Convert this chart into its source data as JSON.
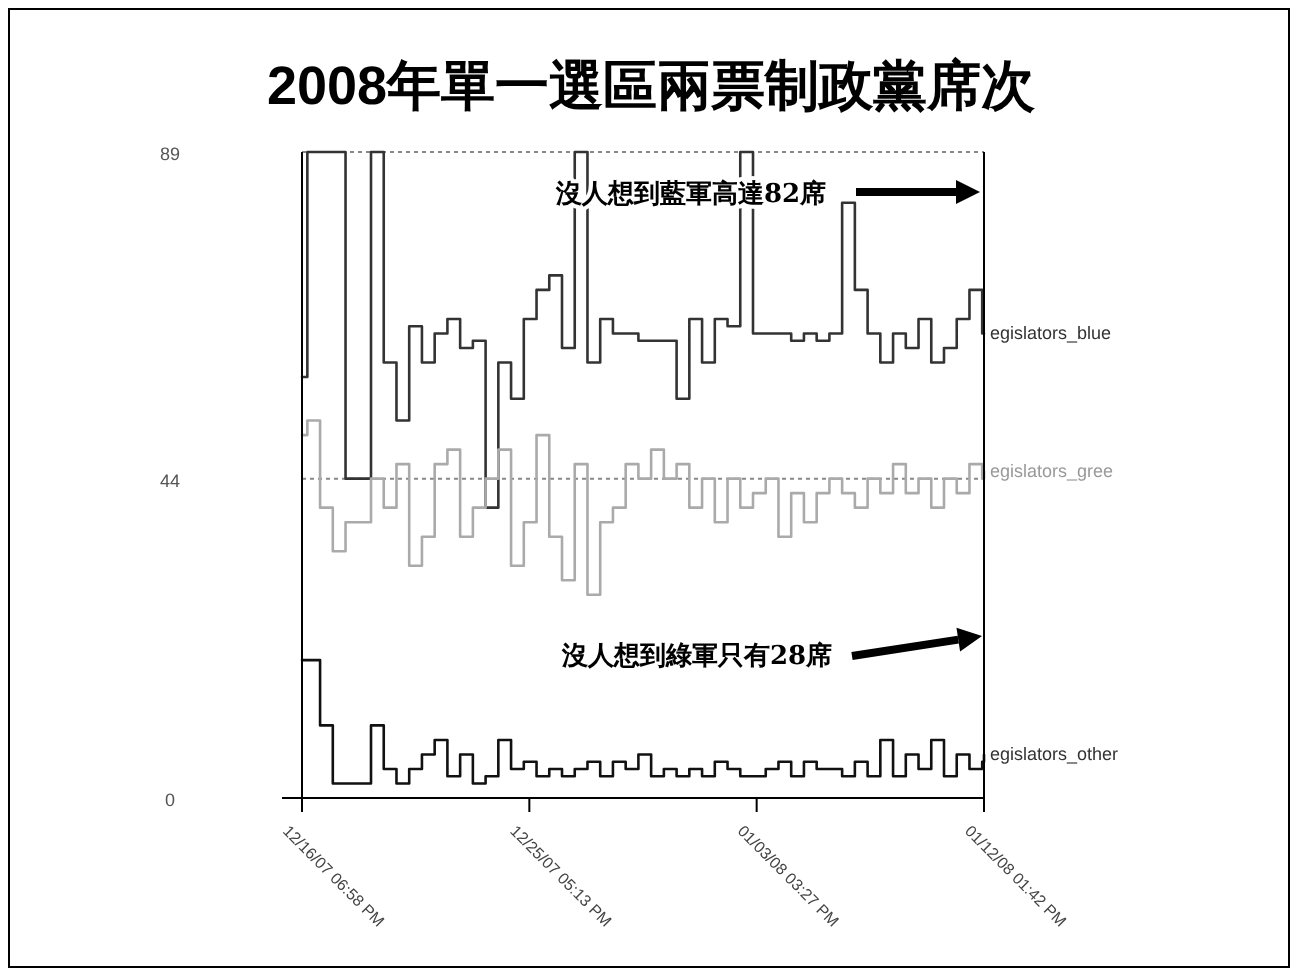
{
  "chart_data": {
    "type": "step",
    "title": "2008年單一選區兩票制政黨席次",
    "x": [
      "2007-12-16T18:58",
      "2007-12-17T00:00",
      "2007-12-17T12:00",
      "2007-12-18T00:00",
      "2007-12-18T12:00",
      "2007-12-19T00:00",
      "2007-12-19T12:00",
      "2007-12-20T00:00",
      "2007-12-20T12:00",
      "2007-12-21T00:00",
      "2007-12-21T12:00",
      "2007-12-22T00:00",
      "2007-12-22T12:00",
      "2007-12-23T00:00",
      "2007-12-23T12:00",
      "2007-12-24T00:00",
      "2007-12-24T12:00",
      "2007-12-25T00:00",
      "2007-12-25T12:00",
      "2007-12-26T00:00",
      "2007-12-26T12:00",
      "2007-12-27T00:00",
      "2007-12-27T12:00",
      "2007-12-28T00:00",
      "2007-12-28T12:00",
      "2007-12-29T00:00",
      "2007-12-29T12:00",
      "2007-12-30T00:00",
      "2007-12-30T12:00",
      "2007-12-31T00:00",
      "2007-12-31T12:00",
      "2008-01-01T00:00",
      "2008-01-01T12:00",
      "2008-01-02T00:00",
      "2008-01-02T12:00",
      "2008-01-03T00:00",
      "2008-01-03T12:00",
      "2008-01-04T00:00",
      "2008-01-04T12:00",
      "2008-01-05T00:00",
      "2008-01-05T12:00",
      "2008-01-06T00:00",
      "2008-01-06T12:00",
      "2008-01-07T00:00",
      "2008-01-07T12:00",
      "2008-01-08T00:00",
      "2008-01-08T12:00",
      "2008-01-09T00:00",
      "2008-01-09T12:00",
      "2008-01-10T00:00",
      "2008-01-10T12:00",
      "2008-01-11T00:00",
      "2008-01-11T12:00",
      "2008-01-12T00:00",
      "2008-01-12T12:00",
      "2008-01-12T13:42"
    ],
    "series": [
      {
        "name": "egislators_blue",
        "color": "#333333",
        "values": [
          58,
          89,
          89,
          89,
          44,
          44,
          89,
          60,
          52,
          65,
          60,
          64,
          66,
          62,
          63,
          40,
          60,
          55,
          66,
          70,
          72,
          62,
          89,
          60,
          66,
          64,
          64,
          63,
          63,
          63,
          55,
          66,
          60,
          66,
          65,
          89,
          64,
          64,
          64,
          63,
          64,
          63,
          64,
          82,
          70,
          64,
          60,
          64,
          62,
          66,
          60,
          62,
          66,
          70,
          64,
          64
        ]
      },
      {
        "name": "egislators_gree",
        "color": "#aaaaaa",
        "values": [
          50,
          52,
          40,
          34,
          38,
          38,
          44,
          40,
          46,
          32,
          36,
          46,
          48,
          36,
          40,
          44,
          48,
          32,
          38,
          50,
          36,
          30,
          46,
          28,
          38,
          40,
          46,
          44,
          48,
          44,
          46,
          40,
          44,
          38,
          44,
          40,
          42,
          44,
          36,
          42,
          38,
          42,
          44,
          42,
          40,
          44,
          42,
          46,
          42,
          44,
          40,
          44,
          42,
          46,
          44,
          45
        ]
      },
      {
        "name": "egislators_other",
        "color": "#111111",
        "values": [
          19,
          19,
          10,
          2,
          2,
          2,
          10,
          4,
          2,
          4,
          6,
          8,
          3,
          6,
          2,
          3,
          8,
          4,
          5,
          3,
          4,
          3,
          4,
          5,
          3,
          5,
          4,
          6,
          3,
          4,
          3,
          4,
          3,
          5,
          4,
          3,
          3,
          4,
          5,
          3,
          5,
          4,
          4,
          3,
          5,
          3,
          8,
          3,
          6,
          4,
          8,
          3,
          6,
          4,
          5,
          6
        ]
      }
    ],
    "xlim": [
      "2007-12-16T18:58",
      "2008-01-12T13:42"
    ],
    "xticks": [
      {
        "value": "2007-12-16T18:58",
        "label": "12/16/07 06:58 PM"
      },
      {
        "value": "2007-12-25T17:13",
        "label": "12/25/07 05:13 PM"
      },
      {
        "value": "2008-01-03T15:27",
        "label": "01/03/08 03:27 PM"
      },
      {
        "value": "2008-01-12T13:42",
        "label": "01/12/08 01:42 PM"
      }
    ],
    "ylim": [
      0,
      89
    ],
    "yticks": [
      0,
      44,
      89
    ],
    "grid": "y",
    "annotations": [
      "沒人想到藍軍高達82席",
      "沒人想到綠軍只有28席"
    ]
  }
}
